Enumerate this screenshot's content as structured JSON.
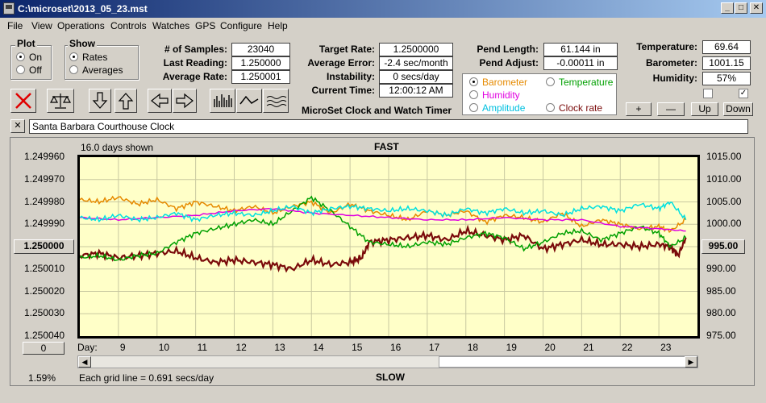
{
  "window": {
    "title": "C:\\microset\\2013_05_23.mst",
    "min": "_",
    "max": "□",
    "close": "✕"
  },
  "menu": [
    "File",
    "View",
    "Operations",
    "Controls",
    "Watches",
    "GPS",
    "Configure",
    "Help"
  ],
  "plot_group": {
    "label": "Plot",
    "on": "On",
    "off": "Off",
    "selected": "On"
  },
  "show_group": {
    "label": "Show",
    "rates": "Rates",
    "averages": "Averages",
    "selected": "Rates"
  },
  "stats": {
    "samples_label": "# of Samples:",
    "samples": "23040",
    "last_reading_label": "Last Reading:",
    "last_reading": "1.250000",
    "average_rate_label": "Average Rate:",
    "average_rate": "1.250001",
    "target_rate_label": "Target Rate:",
    "target_rate": "1.2500000",
    "average_error_label": "Average Error:",
    "average_error": "-2.4 sec/month",
    "instability_label": "Instability:",
    "instability": "0 secs/day",
    "current_time_label": "Current Time:",
    "current_time": "12:00:12 AM",
    "pend_length_label": "Pend Length:",
    "pend_length": "61.144 in",
    "pend_adjust_label": "Pend Adjust:",
    "pend_adjust": "-0.00011 in"
  },
  "env": {
    "temperature_label": "Temperature:",
    "temperature": "69.64",
    "barometer_label": "Barometer:",
    "barometer": "1001.15",
    "humidity_label": "Humidity:",
    "humidity": "57%"
  },
  "series_select": {
    "barometer": "Barometer",
    "temperature": "Temperature",
    "humidity": "Humidity",
    "amplitude": "Amplitude",
    "clock_rate": "Clock rate",
    "selected": "Barometer"
  },
  "app_title": "MicroSet Clock and Watch Timer",
  "adjust_buttons": {
    "plus": "+",
    "minus": "—",
    "up": "Up",
    "down": "Down"
  },
  "clock_name": "Santa Barbara Courthouse Clock",
  "clock_name_clear": "✕",
  "colors": {
    "clock_rate": "#7a0a0a",
    "barometer": "#e68a00",
    "temperature": "#00a000",
    "humidity": "#e000e0",
    "amplitude": "#00e0e0",
    "plot_bg": "#ffffc8"
  },
  "chart_data": {
    "type": "line",
    "title": "",
    "top_label": "FAST",
    "bottom_label": "SLOW",
    "days_shown": "16.0 days shown",
    "grid_note": "Each grid line = 0.691 secs/day",
    "percent": "1.59%",
    "xlabel": "Day:",
    "x_ticks": [
      9,
      10,
      11,
      12,
      13,
      14,
      15,
      16,
      17,
      18,
      19,
      20,
      21,
      22,
      23
    ],
    "xlim": [
      8.0,
      24.0
    ],
    "left_axis": {
      "ticks": [
        "1.249960",
        "1.249970",
        "1.249980",
        "1.249990",
        "1.250000",
        "1.250010",
        "1.250020",
        "1.250030",
        "1.250040"
      ],
      "ylim": [
        1.24996,
        1.25004
      ],
      "inverted": true,
      "center_value": "1.250000"
    },
    "right_axis": {
      "ticks": [
        "1015.00",
        "1010.00",
        "1005.00",
        "1000.00",
        "995.00",
        "990.00",
        "985.00",
        "980.00",
        "975.00"
      ],
      "ylim": [
        975,
        1015
      ],
      "center_value": "995.00"
    },
    "left_offset": "0",
    "series": [
      {
        "name": "Clock rate",
        "color": "#7a0a0a",
        "axis": "left",
        "x": [
          8.0,
          8.5,
          9.0,
          9.5,
          10.0,
          10.5,
          11.0,
          11.5,
          12.0,
          12.5,
          13.0,
          13.5,
          14.0,
          14.5,
          15.0,
          15.3,
          15.5,
          16.0,
          16.5,
          17.0,
          17.5,
          18.0,
          18.5,
          19.0,
          19.5,
          20.0,
          20.5,
          21.0,
          21.5,
          22.0,
          22.5,
          23.0,
          23.3,
          23.5,
          23.7
        ],
        "y": [
          1.250004,
          1.250003,
          1.250005,
          1.250004,
          1.250003,
          1.250002,
          1.250005,
          1.250007,
          1.250006,
          1.250007,
          1.250008,
          1.25001,
          1.250006,
          1.250008,
          1.250007,
          1.250005,
          1.249998,
          1.249997,
          1.249996,
          1.249995,
          1.249997,
          1.249993,
          1.249995,
          1.249997,
          1.249995,
          1.250001,
          1.249999,
          1.249997,
          1.249999,
          1.249999,
          1.25,
          1.249999,
          1.25,
          1.250004,
          1.249996
        ]
      },
      {
        "name": "Barometer",
        "color": "#e68a00",
        "axis": "right",
        "x": [
          8.0,
          8.5,
          9.0,
          9.5,
          10.0,
          10.5,
          11.0,
          11.5,
          12.0,
          12.5,
          13.0,
          13.5,
          14.0,
          14.5,
          15.0,
          15.5,
          16.0,
          16.5,
          17.0,
          17.5,
          18.0,
          18.5,
          19.0,
          19.5,
          20.0,
          20.5,
          21.0,
          21.5,
          22.0,
          22.5,
          23.0,
          23.3,
          23.7
        ],
        "y": [
          1005.5,
          1005.0,
          1006.0,
          1004.5,
          1005.5,
          1003.5,
          1005.0,
          1004.0,
          1003.0,
          1004.0,
          1002.5,
          1004.0,
          1005.0,
          1002.5,
          1004.5,
          1003.0,
          1002.0,
          1001.0,
          1003.0,
          1002.0,
          1003.0,
          1000.5,
          1002.0,
          1001.5,
          1000.5,
          1002.5,
          999.5,
          1001.0,
          1000.0,
          999.0,
          999.5,
          998.5,
          1001.0
        ]
      },
      {
        "name": "Temperature",
        "color": "#00a000",
        "axis": "right",
        "x": [
          8.0,
          8.5,
          9.0,
          9.5,
          10.0,
          10.5,
          11.0,
          11.5,
          12.0,
          12.5,
          13.0,
          13.5,
          14.0,
          14.5,
          15.0,
          15.5,
          16.0,
          16.5,
          17.0,
          17.5,
          18.0,
          18.5,
          19.0,
          19.5,
          20.0,
          20.5,
          21.0,
          21.5,
          22.0,
          22.5,
          23.0,
          23.3,
          23.7
        ],
        "y": [
          992.5,
          993.0,
          992.0,
          993.0,
          993.5,
          996.0,
          998.0,
          999.0,
          1000.0,
          1001.0,
          1000.0,
          1003.0,
          1006.0,
          1003.0,
          999.5,
          996.0,
          995.5,
          995.0,
          996.0,
          995.5,
          997.0,
          998.0,
          997.0,
          994.5,
          996.0,
          998.0,
          998.5,
          996.5,
          998.0,
          999.5,
          998.0,
          995.0,
          997.0
        ]
      },
      {
        "name": "Humidity",
        "color": "#e000e0",
        "axis": "right",
        "x": [
          8.0,
          9.0,
          10.0,
          11.0,
          12.0,
          13.0,
          14.0,
          15.0,
          16.0,
          17.0,
          18.0,
          19.0,
          20.0,
          21.0,
          22.0,
          23.0,
          23.7
        ],
        "y": [
          1001.5,
          1001.0,
          1001.5,
          1002.0,
          1003.0,
          1003.5,
          1002.5,
          1002.0,
          1001.5,
          1001.0,
          1001.0,
          1001.5,
          1001.0,
          1001.0,
          999.5,
          999.0,
          998.5
        ]
      },
      {
        "name": "Amplitude",
        "color": "#00e0e0",
        "axis": "right",
        "x": [
          8.0,
          8.5,
          9.0,
          9.5,
          10.0,
          10.5,
          11.0,
          11.5,
          12.0,
          12.5,
          13.0,
          13.5,
          14.0,
          14.5,
          15.0,
          15.5,
          16.0,
          16.5,
          17.0,
          17.5,
          18.0,
          18.5,
          19.0,
          19.5,
          20.0,
          20.5,
          21.0,
          21.5,
          22.0,
          22.5,
          23.0,
          23.3,
          23.7
        ],
        "y": [
          1001.5,
          1001.0,
          1002.0,
          1001.0,
          1001.5,
          1002.5,
          1001.0,
          1002.0,
          1002.5,
          1002.0,
          1003.0,
          1004.0,
          1002.5,
          1003.5,
          1004.0,
          1003.5,
          1003.0,
          1003.5,
          1003.0,
          1002.0,
          1003.5,
          1002.5,
          1003.5,
          1002.5,
          1003.0,
          1002.0,
          1003.5,
          1004.0,
          1003.0,
          1004.5,
          1003.5,
          1005.0,
          1001.0
        ]
      }
    ]
  }
}
